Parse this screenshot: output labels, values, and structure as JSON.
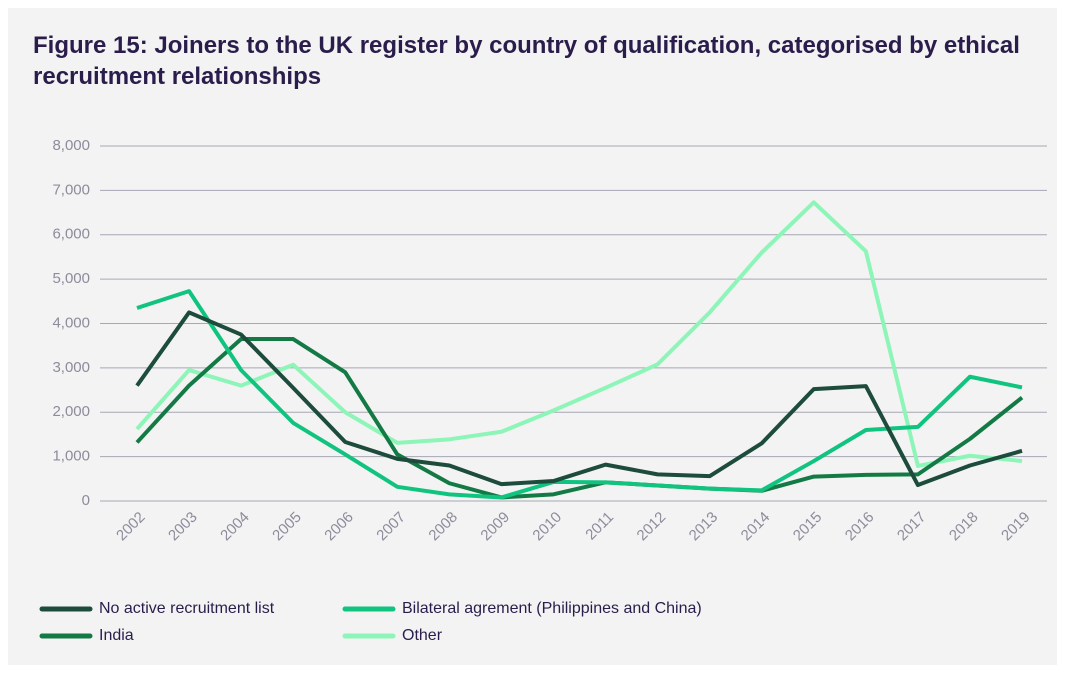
{
  "chart_data": {
    "type": "line",
    "title": "Figure 15: Joiners to the UK register by country of qualification, categorised by ethical recruitment relationships",
    "categories": [
      "2002",
      "2003",
      "2004",
      "2005",
      "2006",
      "2007",
      "2008",
      "2009",
      "2010",
      "2011",
      "2012",
      "2013",
      "2014",
      "2015",
      "2016",
      "2017",
      "2018",
      "2019"
    ],
    "series": [
      {
        "name": "No active recruitment list",
        "color": "#1d4c3c",
        "values": [
          2600,
          4250,
          3750,
          2550,
          1330,
          950,
          800,
          380,
          450,
          820,
          600,
          560,
          1300,
          2520,
          2590,
          360,
          800,
          1130
        ]
      },
      {
        "name": "Bilateral agrement (Philippines and China)",
        "color": "#10c480",
        "values": [
          4350,
          4730,
          2950,
          1760,
          1050,
          320,
          150,
          80,
          430,
          420,
          350,
          280,
          240,
          900,
          1600,
          1670,
          2800,
          2560
        ]
      },
      {
        "name": "India",
        "color": "#137a45",
        "values": [
          1320,
          2600,
          3650,
          3650,
          2900,
          1050,
          400,
          80,
          150,
          420,
          350,
          280,
          230,
          550,
          590,
          600,
          1400,
          2330
        ]
      },
      {
        "name": "Other",
        "color": "#8ef5b8",
        "values": [
          1620,
          2950,
          2600,
          3070,
          2000,
          1310,
          1390,
          1560,
          2040,
          2550,
          3080,
          4250,
          5600,
          6730,
          5630,
          790,
          1020,
          900
        ]
      }
    ],
    "ylim": [
      0,
      8000
    ],
    "yticks": [
      0,
      {
        "value": 1000,
        "label": "1,000"
      },
      {
        "value": 2000,
        "label": "2,000"
      },
      {
        "value": 3000,
        "label": "3,000"
      },
      {
        "value": 4000,
        "label": "4,000"
      },
      {
        "value": 5000,
        "label": "5,000"
      },
      {
        "value": 6000,
        "label": "6,000"
      },
      {
        "value": 7000,
        "label": "7,000"
      },
      {
        "value": 8000,
        "label": "8,000"
      }
    ],
    "grid": true
  }
}
